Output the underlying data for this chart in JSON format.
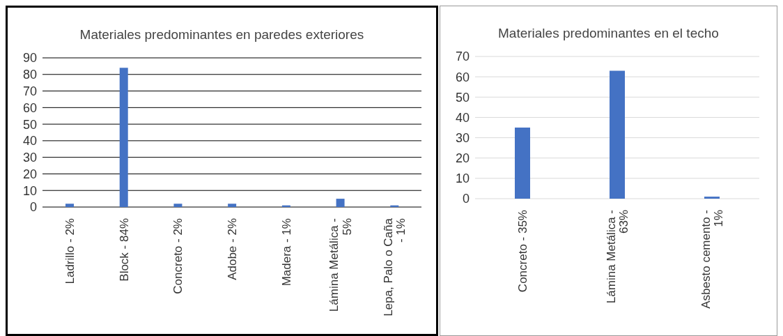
{
  "chart_data": [
    {
      "type": "bar",
      "title": "Materiales predominantes en paredes exteriores",
      "categories": [
        "Ladrillo - 2%",
        "Block  - 84%",
        "Concreto - 2%",
        "Adobe - 2%",
        "Madera - 1%",
        "Lámina Metálica  - 5%",
        "Lepa, Palo o Caña - 1%"
      ],
      "values": [
        2,
        84,
        2,
        2,
        1,
        5,
        1
      ],
      "color": "#4472c4",
      "ylim": [
        0,
        90
      ],
      "yticks": [
        0,
        10,
        20,
        30,
        40,
        50,
        60,
        70,
        80,
        90
      ],
      "grid": "y"
    },
    {
      "type": "bar",
      "title": "Materiales predominantes en el techo",
      "categories": [
        "Concreto - 35%",
        "Lámina Metálica - 63%",
        "Asbesto cemento - 1%"
      ],
      "values": [
        35,
        63,
        1
      ],
      "color": "#4472c4",
      "ylim": [
        0,
        70
      ],
      "yticks": [
        0,
        10,
        20,
        30,
        40,
        50,
        60,
        70
      ],
      "grid": "y"
    }
  ]
}
